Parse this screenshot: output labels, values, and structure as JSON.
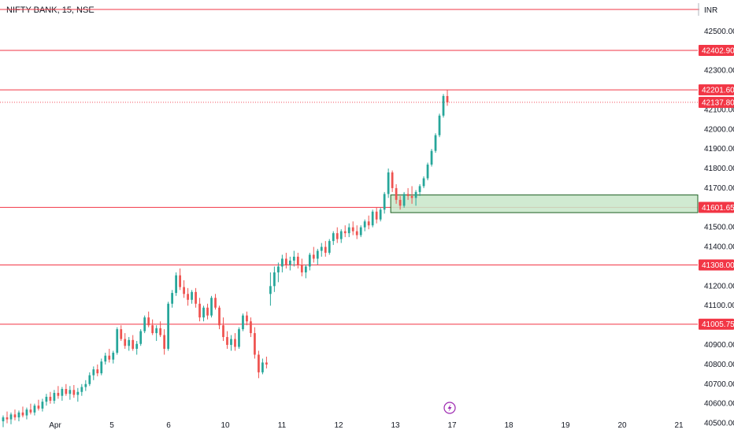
{
  "chart_data": {
    "type": "candlestick",
    "symbol_label": "NIFTY BANK, 15, NSE",
    "currency_label": "INR",
    "y_ticks": [
      "42500.00",
      "42400.00",
      "42300.00",
      "42200.00",
      "42100.00",
      "42000.00",
      "41900.00",
      "41800.00",
      "41700.00",
      "41600.00",
      "41500.00",
      "41400.00",
      "41300.00",
      "41200.00",
      "41100.00",
      "41000.00",
      "40900.00",
      "40800.00",
      "40700.00",
      "40600.00",
      "40500.00"
    ],
    "x_ticks": [
      "Apr",
      "5",
      "6",
      "10",
      "11",
      "12",
      "13",
      "17",
      "18",
      "19",
      "20",
      "21"
    ],
    "ylim": [
      40450,
      42660
    ],
    "levels": [
      {
        "value": 42402.9,
        "label": "42402.90"
      },
      {
        "value": 42201.6,
        "label": "42201.60"
      },
      {
        "value": 41601.65,
        "label": "41601.65"
      },
      {
        "value": 41308.0,
        "label": "41308.00"
      },
      {
        "value": 41005.75,
        "label": "41005.75"
      }
    ],
    "last_price": {
      "value": 42137.8,
      "label": "42137.80"
    },
    "demand_zone": {
      "low": 41575,
      "high": 41665
    },
    "colors": {
      "up": "#26a69a",
      "down": "#ef5350",
      "level": "#f23645",
      "zone_fill": "#c8e6c9",
      "zone_border": "#1b5e20"
    },
    "candles": [
      [
        40510,
        40540,
        40480,
        40530
      ],
      [
        40530,
        40560,
        40500,
        40520
      ],
      [
        40520,
        40555,
        40495,
        40545
      ],
      [
        40545,
        40570,
        40515,
        40530
      ],
      [
        40530,
        40565,
        40510,
        40555
      ],
      [
        40555,
        40585,
        40530,
        40540
      ],
      [
        40540,
        40580,
        40520,
        40570
      ],
      [
        40570,
        40600,
        40545,
        40555
      ],
      [
        40555,
        40600,
        40540,
        40590
      ],
      [
        40590,
        40620,
        40565,
        40575
      ],
      [
        40575,
        40625,
        40560,
        40610
      ],
      [
        40610,
        40650,
        40590,
        40635
      ],
      [
        40635,
        40660,
        40600,
        40615
      ],
      [
        40615,
        40670,
        40600,
        40655
      ],
      [
        40655,
        40690,
        40625,
        40640
      ],
      [
        40640,
        40685,
        40615,
        40675
      ],
      [
        40675,
        40700,
        40640,
        40650
      ],
      [
        40650,
        40690,
        40620,
        40670
      ],
      [
        40670,
        40695,
        40630,
        40645
      ],
      [
        40645,
        40680,
        40610,
        40660
      ],
      [
        40660,
        40700,
        40640,
        40685
      ],
      [
        40685,
        40720,
        40665,
        40700
      ],
      [
        40700,
        40760,
        40690,
        40745
      ],
      [
        40745,
        40790,
        40720,
        40775
      ],
      [
        40775,
        40800,
        40740,
        40755
      ],
      [
        40755,
        40830,
        40745,
        40815
      ],
      [
        40815,
        40860,
        40800,
        40845
      ],
      [
        40845,
        40880,
        40810,
        40825
      ],
      [
        40825,
        40870,
        40805,
        40860
      ],
      [
        40860,
        40990,
        40850,
        40980
      ],
      [
        40980,
        41000,
        40920,
        40930
      ],
      [
        40930,
        40960,
        40880,
        40895
      ],
      [
        40895,
        40940,
        40870,
        40925
      ],
      [
        40925,
        40950,
        40870,
        40880
      ],
      [
        40880,
        40920,
        40850,
        40905
      ],
      [
        40905,
        40980,
        40895,
        40970
      ],
      [
        40970,
        41050,
        40960,
        41040
      ],
      [
        41040,
        41070,
        40990,
        41000
      ],
      [
        41000,
        41030,
        40950,
        40960
      ],
      [
        40960,
        41000,
        40920,
        40985
      ],
      [
        40985,
        41020,
        40940,
        40950
      ],
      [
        40950,
        40980,
        40850,
        40880
      ],
      [
        40880,
        41120,
        40870,
        41110
      ],
      [
        41110,
        41180,
        41090,
        41165
      ],
      [
        41165,
        41270,
        41150,
        41255
      ],
      [
        41255,
        41290,
        41180,
        41195
      ],
      [
        41195,
        41230,
        41140,
        41160
      ],
      [
        41160,
        41190,
        41100,
        41130
      ],
      [
        41130,
        41180,
        41110,
        41170
      ],
      [
        41170,
        41190,
        41090,
        41110
      ],
      [
        41110,
        41140,
        41020,
        41040
      ],
      [
        41040,
        41100,
        41020,
        41090
      ],
      [
        41090,
        41110,
        41030,
        41050
      ],
      [
        41050,
        41150,
        41040,
        41140
      ],
      [
        41140,
        41160,
        41080,
        41090
      ],
      [
        41090,
        41100,
        40980,
        41000
      ],
      [
        41000,
        41040,
        40920,
        40940
      ],
      [
        40940,
        40970,
        40880,
        40900
      ],
      [
        40900,
        40950,
        40870,
        40930
      ],
      [
        40930,
        40960,
        40870,
        40890
      ],
      [
        40890,
        40990,
        40880,
        40980
      ],
      [
        40980,
        41060,
        40970,
        41050
      ],
      [
        41050,
        41070,
        41000,
        41020
      ],
      [
        41020,
        41040,
        40940,
        40960
      ],
      [
        40960,
        40990,
        40830,
        40850
      ],
      [
        40850,
        40870,
        40730,
        40760
      ],
      [
        40760,
        40830,
        40750,
        40810
      ],
      [
        40810,
        40840,
        40780,
        40800
      ],
      [
        41160,
        41270,
        41100,
        41200
      ],
      [
        41200,
        41300,
        41170,
        41270
      ],
      [
        41270,
        41320,
        41220,
        41300
      ],
      [
        41300,
        41360,
        41270,
        41340
      ],
      [
        41340,
        41370,
        41290,
        41310
      ],
      [
        41310,
        41350,
        41280,
        41330
      ],
      [
        41330,
        41380,
        41300,
        41350
      ],
      [
        41350,
        41370,
        41290,
        41310
      ],
      [
        41310,
        41340,
        41250,
        41270
      ],
      [
        41270,
        41310,
        41240,
        41300
      ],
      [
        41300,
        41370,
        41280,
        41360
      ],
      [
        41360,
        41400,
        41320,
        41340
      ],
      [
        41340,
        41390,
        41310,
        41380
      ],
      [
        41380,
        41420,
        41350,
        41400
      ],
      [
        41400,
        41430,
        41350,
        41370
      ],
      [
        41370,
        41440,
        41360,
        41430
      ],
      [
        41430,
        41480,
        41410,
        41470
      ],
      [
        41470,
        41500,
        41420,
        41440
      ],
      [
        41440,
        41490,
        41420,
        41480
      ],
      [
        41480,
        41510,
        41450,
        41470
      ],
      [
        41470,
        41520,
        41450,
        41500
      ],
      [
        41500,
        41530,
        41460,
        41480
      ],
      [
        41480,
        41510,
        41440,
        41460
      ],
      [
        41460,
        41510,
        41450,
        41500
      ],
      [
        41500,
        41540,
        41480,
        41530
      ],
      [
        41530,
        41560,
        41490,
        41510
      ],
      [
        41510,
        41590,
        41500,
        41580
      ],
      [
        41580,
        41600,
        41520,
        41540
      ],
      [
        41540,
        41600,
        41530,
        41590
      ],
      [
        41590,
        41680,
        41570,
        41670
      ],
      [
        41670,
        41800,
        41650,
        41780
      ],
      [
        41780,
        41790,
        41680,
        41700
      ],
      [
        41700,
        41720,
        41620,
        41640
      ],
      [
        41640,
        41660,
        41590,
        41610
      ],
      [
        41610,
        41680,
        41600,
        41670
      ],
      [
        41670,
        41700,
        41640,
        41660
      ],
      [
        41660,
        41710,
        41620,
        41650
      ],
      [
        41650,
        41690,
        41610,
        41680
      ],
      [
        41680,
        41720,
        41660,
        41710
      ],
      [
        41710,
        41760,
        41700,
        41750
      ],
      [
        41750,
        41830,
        41740,
        41820
      ],
      [
        41820,
        41900,
        41810,
        41890
      ],
      [
        41890,
        41980,
        41880,
        41970
      ],
      [
        41970,
        42080,
        41960,
        42070
      ],
      [
        42070,
        42180,
        42060,
        42170
      ],
      [
        42170,
        42200,
        42120,
        42137.8
      ]
    ]
  }
}
